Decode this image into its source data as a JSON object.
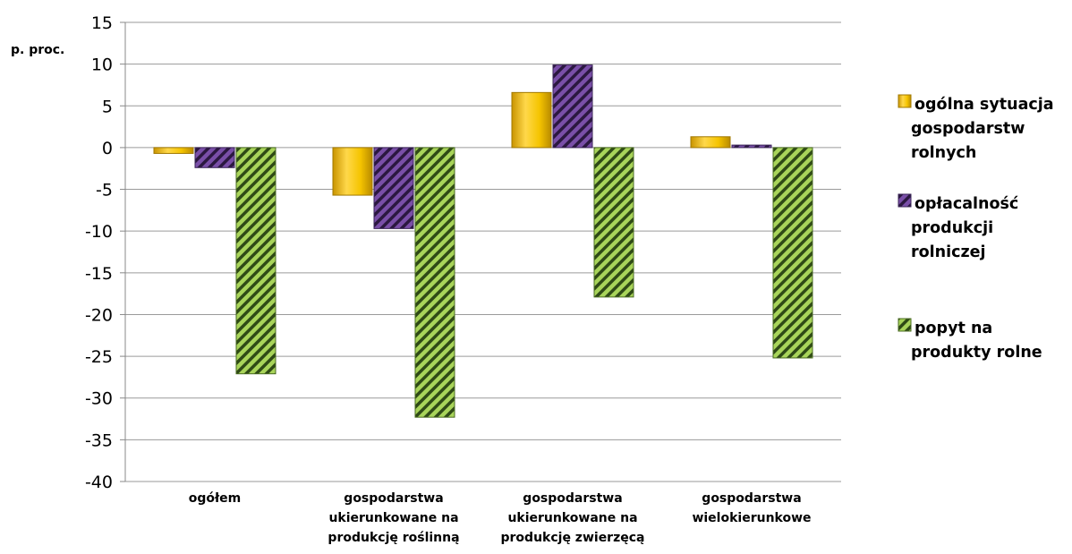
{
  "chart_data": {
    "type": "bar",
    "ylabel": "p. proc.",
    "ylim": [
      -40,
      15
    ],
    "yticks": [
      "15",
      "10",
      "5",
      "0",
      "-5",
      "-10",
      "-15",
      "-20",
      "-25",
      "-30",
      "-35",
      "-40"
    ],
    "grid": true,
    "legend_position": "right",
    "categories": [
      [
        "ogółem"
      ],
      [
        "gospodarstwa",
        "ukierunkowane na",
        "produkcję roślinną"
      ],
      [
        "gospodarstwa",
        "ukierunkowane na",
        "produkcję zwierzęcą"
      ],
      [
        "gospodarstwa",
        "wielokierunkowe"
      ]
    ],
    "series": [
      {
        "name": [
          "ogólna sytuacja",
          "gospodarstw",
          "rolnych"
        ],
        "values": [
          -0.7,
          -5.7,
          6.6,
          1.3
        ],
        "color": "#f5c400"
      },
      {
        "name": [
          "opłacalność",
          "produkcji",
          "rolniczej"
        ],
        "values": [
          -2.4,
          -9.7,
          9.9,
          0.3
        ],
        "color": "#6a3d9a"
      },
      {
        "name": [
          "popyt na",
          "produkty rolne"
        ],
        "values": [
          -27.1,
          -32.3,
          -17.9,
          -25.2
        ],
        "color": "#92c047"
      }
    ]
  }
}
